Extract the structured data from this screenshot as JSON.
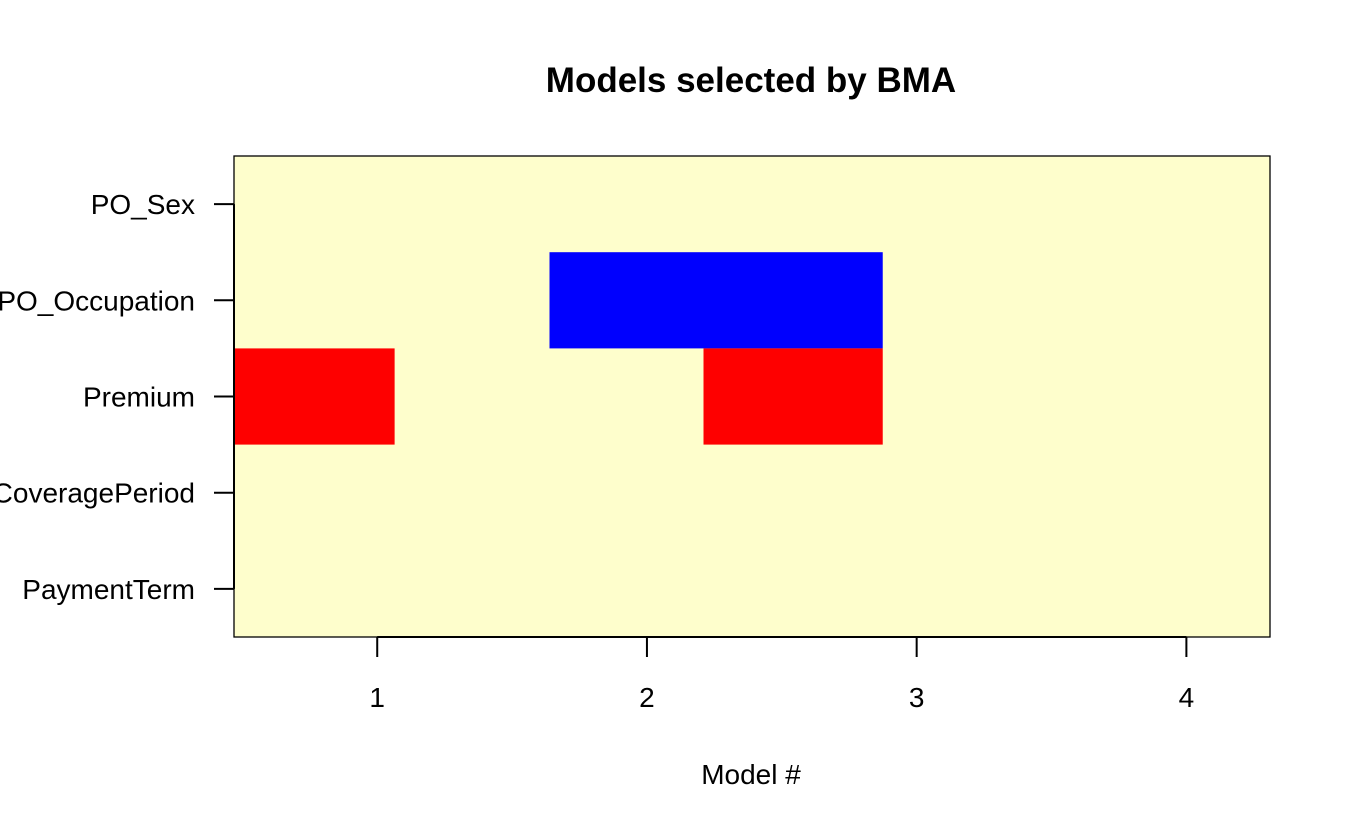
{
  "chart_data": {
    "type": "heatmap",
    "title": "Models selected by BMA",
    "xlabel": "Model #",
    "ylabel": "",
    "x_tick_labels": [
      "1",
      "2",
      "3",
      "4"
    ],
    "x_tick_values": [
      1,
      2,
      3,
      4
    ],
    "xlim": [
      0.469,
      4.31
    ],
    "cumulative_model_widths": [
      0,
      1.0645,
      1.6387,
      2.2097,
      2.8742
    ],
    "variables": [
      "PO_Sex",
      "PO_Occupation",
      "Premium",
      "CoveragePeriod",
      "PaymentTerm"
    ],
    "cells": [
      {
        "variable": "PO_Occupation",
        "model": 3,
        "sign": "negative"
      },
      {
        "variable": "PO_Occupation",
        "model": 4,
        "sign": "negative"
      },
      {
        "variable": "Premium",
        "model": 1,
        "sign": "positive"
      },
      {
        "variable": "Premium",
        "model": 4,
        "sign": "positive"
      }
    ],
    "colors": {
      "background": "#fefecc",
      "positive": "#fe0000",
      "negative": "#0000fe",
      "frame": "#000000"
    },
    "grid": false,
    "legend": "none"
  }
}
